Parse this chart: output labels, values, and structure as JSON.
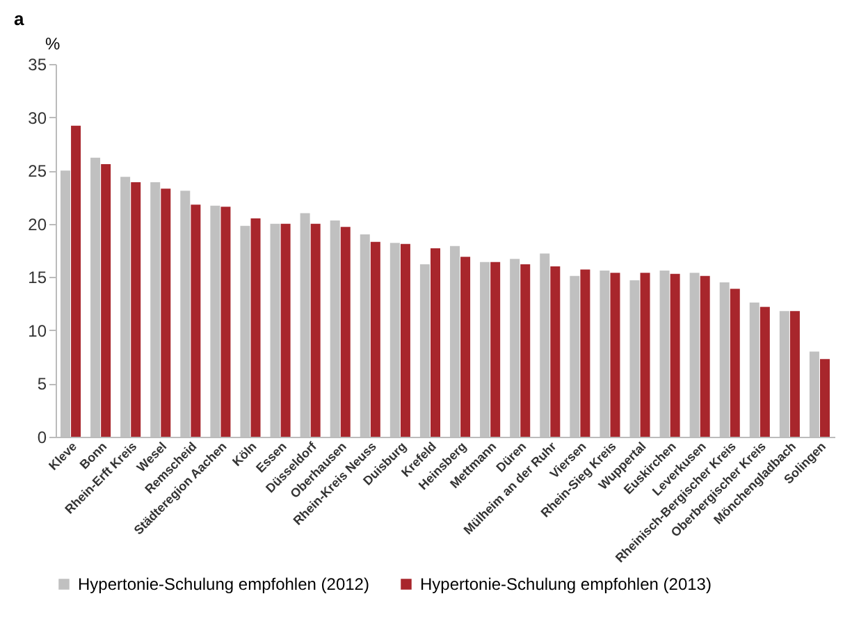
{
  "chart_data": {
    "type": "bar",
    "title": "a",
    "ylabel": "%",
    "categories": [
      "Kleve",
      "Bonn",
      "Rhein-Erft Kreis",
      "Wesel",
      "Remscheid",
      "Städteregion Aachen",
      "Köln",
      "Essen",
      "Düsseldorf",
      "Oberhausen",
      "Rhein-Kreis Neuss",
      "Duisburg",
      "Krefeld",
      "Heinsberg",
      "Mettmann",
      "Düren",
      "Mülheim an der Ruhr",
      "Viersen",
      "Rhein-Sieg Kreis",
      "Wuppertal",
      "Euskirchen",
      "Leverkusen",
      "Rheinisch-Bergischer Kreis",
      "Oberbergischer Kreis",
      "Mönchengladbach",
      "Solingen"
    ],
    "series": [
      {
        "name": "Hypertonie-Schulung empfohlen (2012)",
        "color": "#c0c0c0",
        "values": [
          25.0,
          26.2,
          24.4,
          23.9,
          23.1,
          21.7,
          19.8,
          20.0,
          21.0,
          20.3,
          19.0,
          18.2,
          16.2,
          17.9,
          16.4,
          16.7,
          17.2,
          15.1,
          15.6,
          14.7,
          15.6,
          15.4,
          14.5,
          12.6,
          11.8,
          8.0
        ]
      },
      {
        "name": "Hypertonie-Schulung empfohlen (2013)",
        "color": "#a8262c",
        "values": [
          29.2,
          25.6,
          23.9,
          23.3,
          21.8,
          21.6,
          20.5,
          20.0,
          20.0,
          19.7,
          18.3,
          18.1,
          17.7,
          16.9,
          16.4,
          16.2,
          16.0,
          15.7,
          15.4,
          15.4,
          15.3,
          15.1,
          13.9,
          12.2,
          11.8,
          7.3
        ]
      }
    ],
    "ylim": [
      0,
      35
    ],
    "yticks": [
      0,
      5,
      10,
      15,
      20,
      25,
      30,
      35
    ],
    "grid": false,
    "legend": "bottom"
  }
}
